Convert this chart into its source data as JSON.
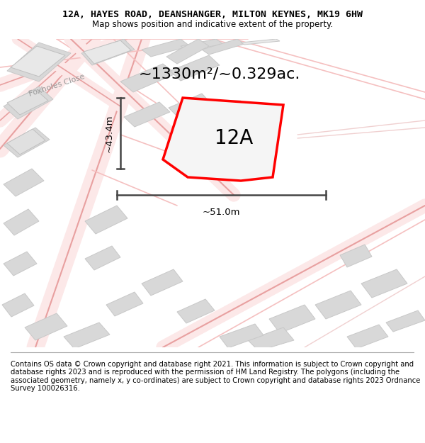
{
  "title": "12A, HAYES ROAD, DEANSHANGER, MILTON KEYNES, MK19 6HW",
  "subtitle": "Map shows position and indicative extent of the property.",
  "footer": "Contains OS data © Crown copyright and database right 2021. This information is subject to Crown copyright and database rights 2023 and is reproduced with the permission of HM Land Registry. The polygons (including the associated geometry, namely x, y co-ordinates) are subject to Crown copyright and database rights 2023 Ordnance Survey 100026316.",
  "property_label": "12A",
  "area_label": "~1330m²/~0.329ac.",
  "dim_width_label": "~51.0m",
  "dim_height_label": "~43.4m",
  "background_color": "#ffffff",
  "map_bg_color": "#ffffff",
  "road_color": "#f5c0c0",
  "road_color_dark": "#e8a0a0",
  "building_fill": "#d8d8d8",
  "building_stroke": "#c8c8c8",
  "highlight_fill": "#f5f5f5",
  "highlight_stroke": "#ff0000",
  "dim_color": "#444444",
  "title_fontsize": 9.5,
  "subtitle_fontsize": 8.5,
  "footer_fontsize": 7.2,
  "label_fontsize": 20,
  "area_fontsize": 16,
  "dim_fontsize": 9.5,
  "street_label": "Foxholes Close",
  "street_label_fontsize": 8
}
